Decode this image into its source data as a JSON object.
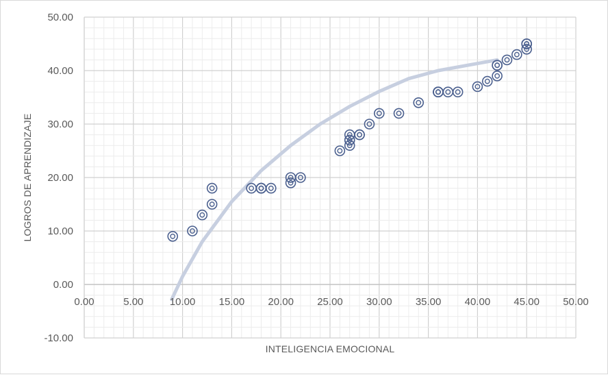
{
  "chart_data": {
    "type": "scatter",
    "title": "",
    "xlabel": "INTELIGENCIA EMOCIONAL",
    "ylabel": "LOGROS DE APRENDIZAJE",
    "xlim": [
      0,
      50
    ],
    "ylim": [
      -10,
      50
    ],
    "x_tick_labels": [
      "0.00",
      "5.00",
      "10.00",
      "15.00",
      "20.00",
      "25.00",
      "30.00",
      "35.00",
      "40.00",
      "45.00",
      "50.00"
    ],
    "y_tick_labels": [
      "-10.00",
      "0.00",
      "10.00",
      "20.00",
      "30.00",
      "40.00",
      "50.00"
    ],
    "x_ticks": [
      0,
      5,
      10,
      15,
      20,
      25,
      30,
      35,
      40,
      45,
      50
    ],
    "y_ticks": [
      -10,
      0,
      10,
      20,
      30,
      40,
      50
    ],
    "grid": "major and minor",
    "legend": "none",
    "series": [
      {
        "marker": "double-circle",
        "color": "#4a5f8e",
        "points": [
          [
            9,
            9
          ],
          [
            11,
            10
          ],
          [
            12,
            13
          ],
          [
            13,
            15
          ],
          [
            13,
            18
          ],
          [
            17,
            18
          ],
          [
            18,
            18
          ],
          [
            18,
            18
          ],
          [
            18,
            18
          ],
          [
            19,
            18
          ],
          [
            21,
            19
          ],
          [
            21,
            20
          ],
          [
            22,
            20
          ],
          [
            26,
            25
          ],
          [
            27,
            26
          ],
          [
            27,
            27
          ],
          [
            27,
            27
          ],
          [
            27,
            28
          ],
          [
            28,
            28
          ],
          [
            28,
            28
          ],
          [
            29,
            30
          ],
          [
            30,
            32
          ],
          [
            32,
            32
          ],
          [
            34,
            34
          ],
          [
            36,
            36
          ],
          [
            36,
            36
          ],
          [
            36,
            36
          ],
          [
            37,
            36
          ],
          [
            38,
            36
          ],
          [
            40,
            37
          ],
          [
            41,
            38
          ],
          [
            42,
            39
          ],
          [
            42,
            41
          ],
          [
            42,
            41
          ],
          [
            43,
            42
          ],
          [
            44,
            43
          ],
          [
            45,
            44
          ],
          [
            45,
            45
          ],
          [
            45,
            45
          ],
          [
            45,
            45
          ]
        ]
      }
    ],
    "trendline": {
      "type": "logarithmic",
      "color": "#c7cfe0",
      "x": [
        8.9,
        10,
        12,
        15,
        18,
        21,
        24,
        27,
        30,
        33,
        36,
        39,
        42
      ],
      "y": [
        -2.8,
        1.5,
        8.0,
        15.5,
        21.3,
        26.0,
        30.0,
        33.3,
        36.1,
        38.5,
        40.0,
        41.0,
        42.0
      ]
    }
  }
}
